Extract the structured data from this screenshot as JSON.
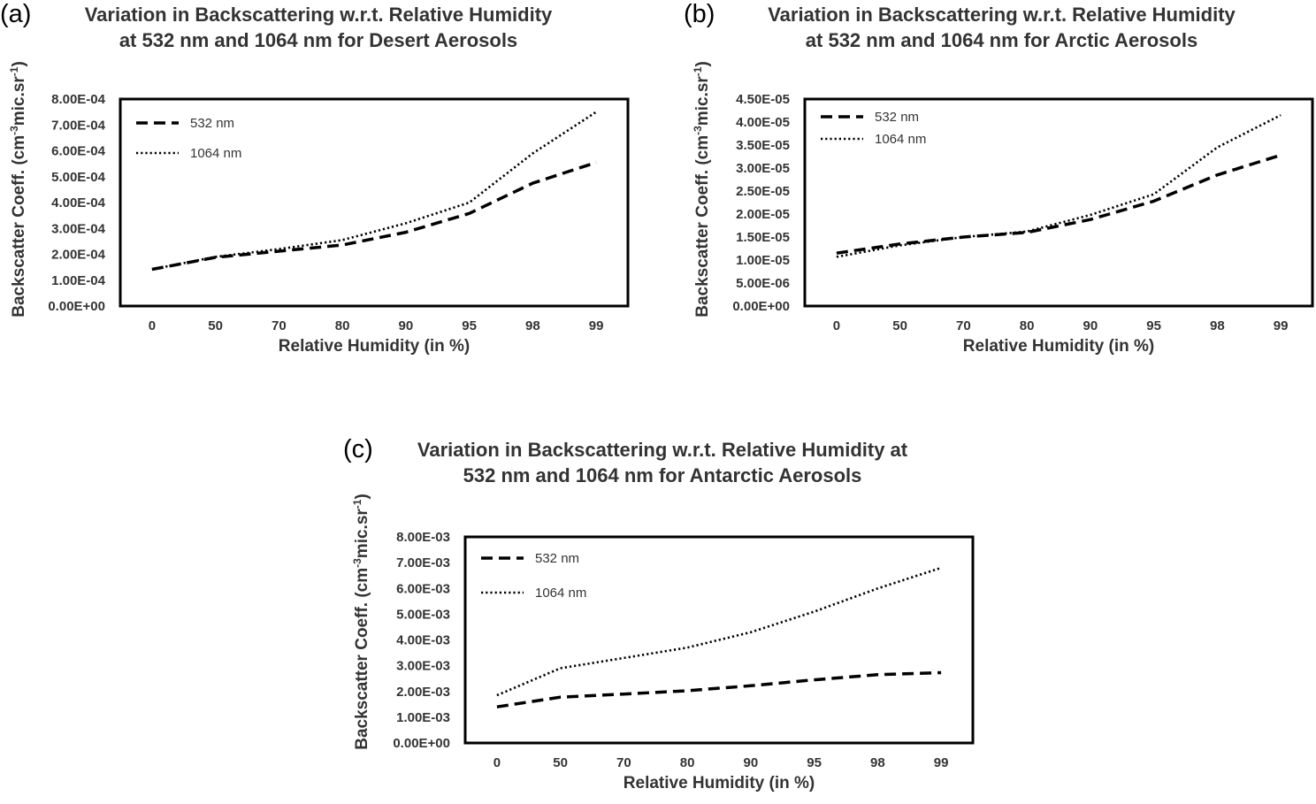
{
  "chart_data": [
    {
      "type": "line",
      "panel_label": "(a)",
      "title": "Variation in Backscattering w.r.t. Relative Humidity at 532 nm and 1064 nm for Desert Aerosols",
      "xlabel": "Relative Humidity (in %)",
      "ylabel_main": "Backscatter Coeff. (cm",
      "ylabel_sup1": "-3",
      "ylabel_mid": "mic.sr",
      "ylabel_sup2": "-1",
      "ylabel_end": ")",
      "categories": [
        "0",
        "50",
        "70",
        "80",
        "90",
        "95",
        "98",
        "99"
      ],
      "ylim": [
        0,
        0.0008
      ],
      "yticks": [
        0,
        0.0001,
        0.0002,
        0.0003,
        0.0004,
        0.0005,
        0.0006,
        0.0007,
        0.0008
      ],
      "ytick_labels": [
        "0.00E+00",
        "1.00E-04",
        "2.00E-04",
        "3.00E-04",
        "4.00E-04",
        "5.00E-04",
        "6.00E-04",
        "7.00E-04",
        "8.00E-04"
      ],
      "grid": false,
      "legend_position": "top-left",
      "series": [
        {
          "name": "532 nm",
          "style": "dashed",
          "values": [
            0.000142,
            0.000188,
            0.000212,
            0.000236,
            0.000285,
            0.000358,
            0.000475,
            0.000555
          ]
        },
        {
          "name": "1064 nm",
          "style": "dotted",
          "values": [
            0.000142,
            0.00019,
            0.00022,
            0.000255,
            0.00032,
            0.0004,
            0.00059,
            0.00075
          ]
        }
      ]
    },
    {
      "type": "line",
      "panel_label": "(b)",
      "title": "Variation in Backscattering w.r.t. Relative Humidity at 532 nm and 1064 nm for Arctic Aerosols",
      "xlabel": "Relative Humidity (in %)",
      "ylabel_main": "Backscatter Coeff. (cm",
      "ylabel_sup1": "-3",
      "ylabel_mid": "mic.sr",
      "ylabel_sup2": "-1",
      "ylabel_end": ")",
      "categories": [
        "0",
        "50",
        "70",
        "80",
        "90",
        "95",
        "98",
        "99"
      ],
      "ylim": [
        0,
        4.5e-05
      ],
      "yticks": [
        0,
        5e-06,
        1e-05,
        1.5e-05,
        2e-05,
        2.5e-05,
        3e-05,
        3.5e-05,
        4e-05,
        4.5e-05
      ],
      "ytick_labels": [
        "0.00E+00",
        "5.00E-06",
        "1.00E-05",
        "1.50E-05",
        "2.00E-05",
        "2.50E-05",
        "3.00E-05",
        "3.50E-05",
        "4.00E-05",
        "4.50E-05"
      ],
      "grid": false,
      "legend_position": "top-left",
      "series": [
        {
          "name": "532 nm",
          "style": "dashed",
          "values": [
            1.15e-05,
            1.35e-05,
            1.5e-05,
            1.6e-05,
            1.88e-05,
            2.28e-05,
            2.85e-05,
            3.28e-05
          ]
        },
        {
          "name": "1064 nm",
          "style": "dotted",
          "values": [
            1.07e-05,
            1.32e-05,
            1.5e-05,
            1.62e-05,
            1.98e-05,
            2.43e-05,
            3.45e-05,
            4.15e-05
          ]
        }
      ]
    },
    {
      "type": "line",
      "panel_label": "(c)",
      "title": "Variation in Backscattering w.r.t. Relative Humidity at 532 nm and 1064 nm for Antarctic Aerosols",
      "xlabel": "Relative Humidity (in %)",
      "ylabel_main": "Backscatter Coeff. (cm",
      "ylabel_sup1": "-3",
      "ylabel_mid": "mic.sr",
      "ylabel_sup2": "-1",
      "ylabel_end": ")",
      "categories": [
        "0",
        "50",
        "70",
        "80",
        "90",
        "95",
        "98",
        "99"
      ],
      "ylim": [
        0,
        0.008
      ],
      "yticks": [
        0,
        0.001,
        0.002,
        0.003,
        0.004,
        0.005,
        0.006,
        0.007,
        0.008
      ],
      "ytick_labels": [
        "0.00E+00",
        "1.00E-03",
        "2.00E-03",
        "3.00E-03",
        "4.00E-03",
        "5.00E-03",
        "6.00E-03",
        "7.00E-03",
        "8.00E-03"
      ],
      "grid": false,
      "legend_position": "top-left",
      "series": [
        {
          "name": "532 nm",
          "style": "dashed",
          "values": [
            0.0014,
            0.00178,
            0.0019,
            0.00203,
            0.00222,
            0.00245,
            0.00265,
            0.00273
          ]
        },
        {
          "name": "1064 nm",
          "style": "dotted",
          "values": [
            0.00185,
            0.0029,
            0.0033,
            0.0037,
            0.0043,
            0.0051,
            0.006,
            0.0068
          ]
        }
      ]
    }
  ]
}
